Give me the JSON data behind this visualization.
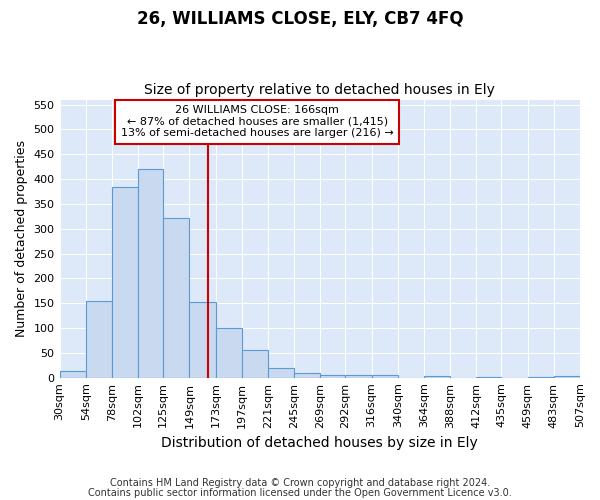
{
  "title": "26, WILLIAMS CLOSE, ELY, CB7 4FQ",
  "subtitle": "Size of property relative to detached houses in Ely",
  "xlabel": "Distribution of detached houses by size in Ely",
  "ylabel": "Number of detached properties",
  "footnote1": "Contains HM Land Registry data © Crown copyright and database right 2024.",
  "footnote2": "Contains public sector information licensed under the Open Government Licence v3.0.",
  "annotation_line1": "26 WILLIAMS CLOSE: 166sqm",
  "annotation_line2": "← 87% of detached houses are smaller (1,415)",
  "annotation_line3": "13% of semi-detached houses are larger (216) →",
  "bar_color": "#c8d9f0",
  "bar_edge_color": "#5b9bd5",
  "vline_color": "#cc0000",
  "vline_x": 166,
  "bin_edges": [
    30,
    54,
    78,
    102,
    125,
    149,
    173,
    197,
    221,
    245,
    269,
    292,
    316,
    340,
    364,
    388,
    412,
    435,
    459,
    483,
    507
  ],
  "bar_heights": [
    13,
    155,
    383,
    420,
    322,
    152,
    100,
    55,
    19,
    10,
    5,
    5,
    5,
    0,
    3,
    0,
    2,
    0,
    2,
    3
  ],
  "ylim": [
    0,
    560
  ],
  "yticks": [
    0,
    50,
    100,
    150,
    200,
    250,
    300,
    350,
    400,
    450,
    500,
    550
  ],
  "bg_color": "#dde8f8",
  "fig_bg_color": "#ffffff",
  "grid_color": "#ffffff",
  "annotation_box_color": "#ffffff",
  "annotation_box_edge": "#cc0000",
  "title_fontsize": 12,
  "subtitle_fontsize": 10,
  "ylabel_fontsize": 9,
  "xlabel_fontsize": 10,
  "tick_fontsize": 8,
  "footnote_fontsize": 7
}
